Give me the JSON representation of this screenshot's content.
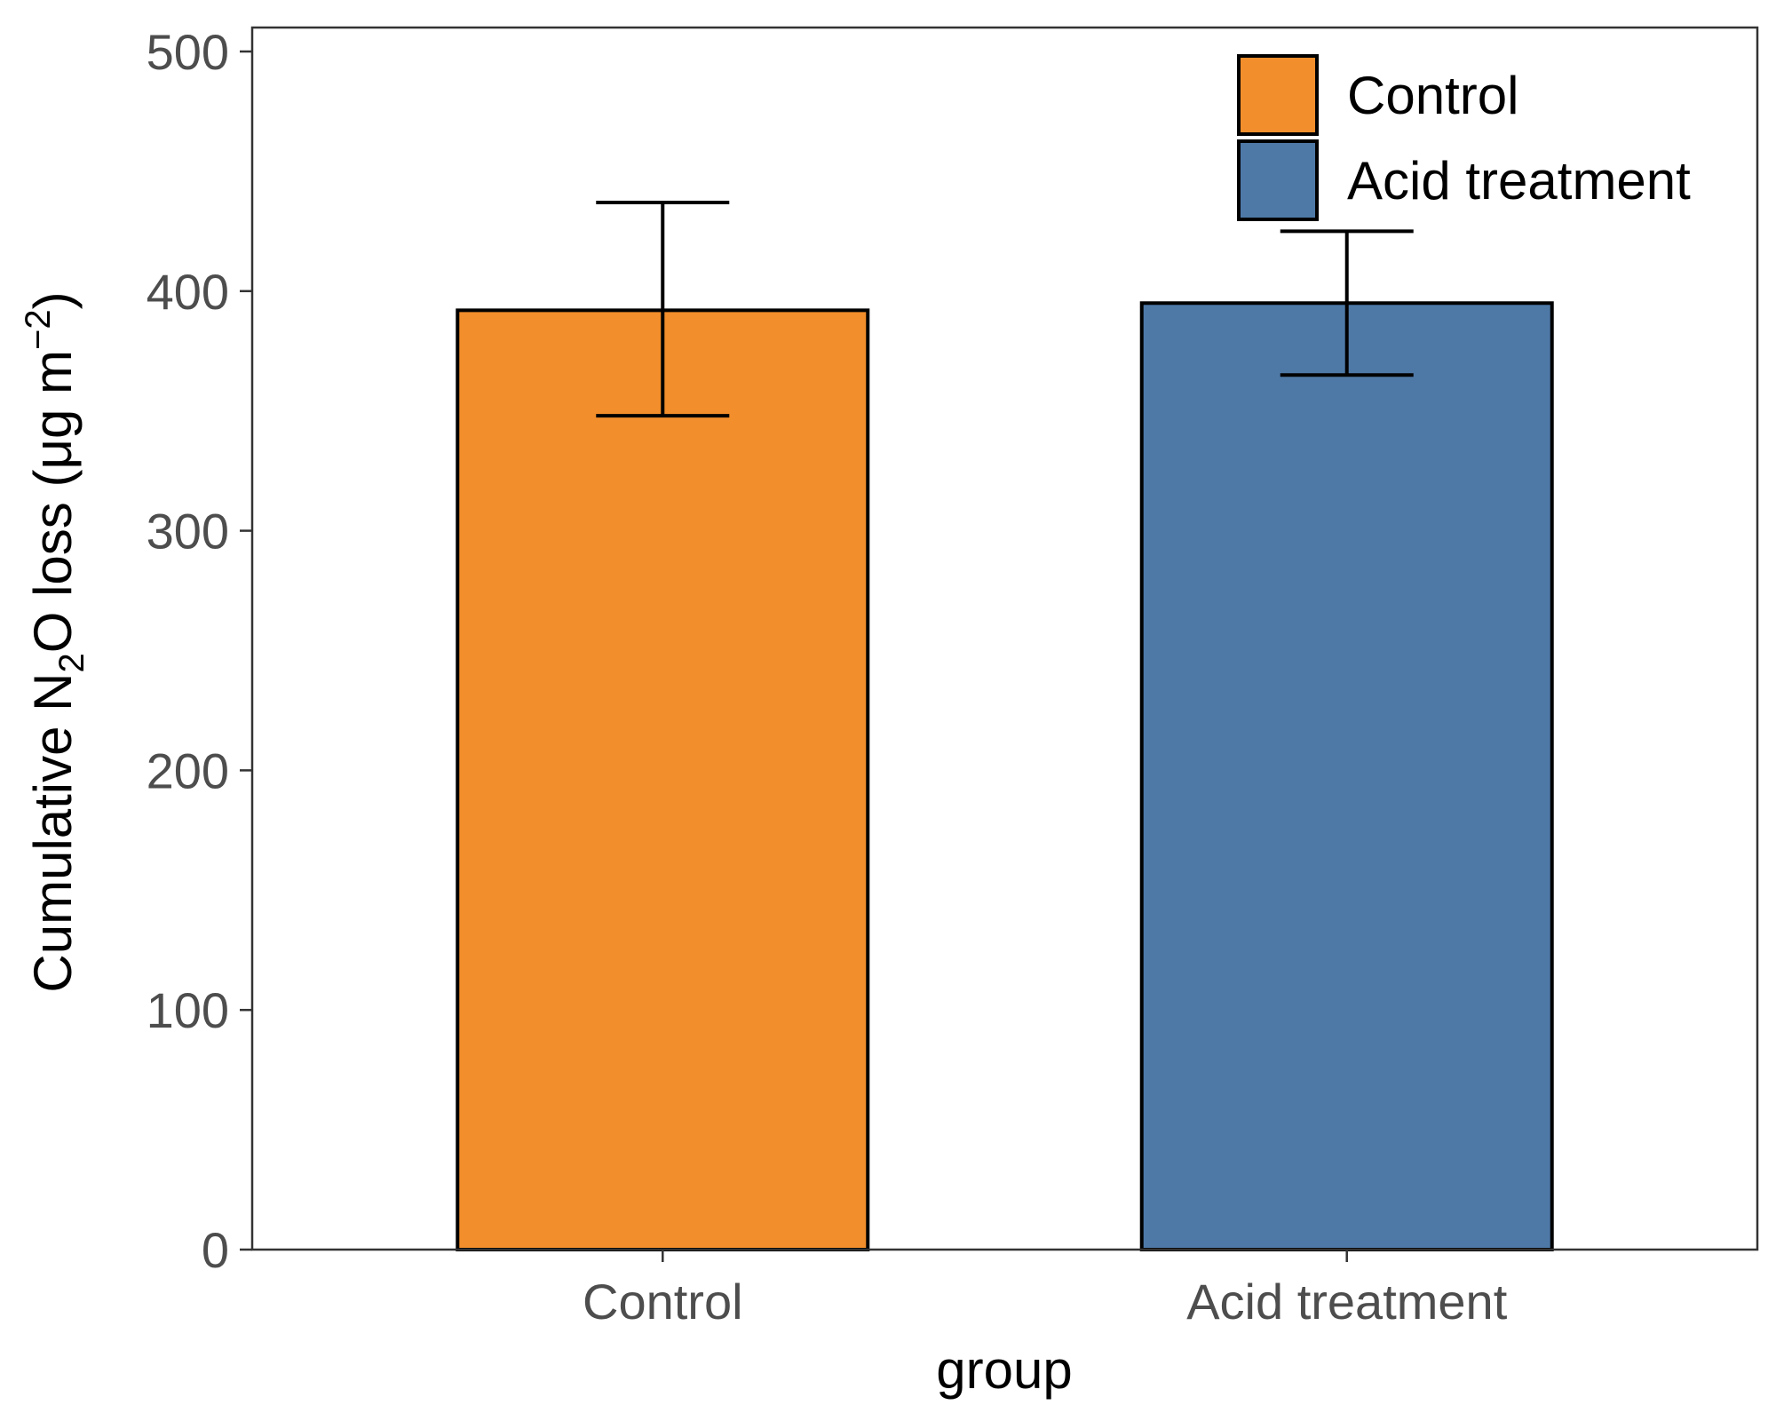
{
  "chart_data": {
    "type": "bar",
    "title": "",
    "xlabel": "group",
    "ylabel": {
      "pre": "Cumulative N",
      "sub": "2",
      "mid": "O loss (μg m",
      "sup": "−2",
      "post": ")"
    },
    "categories": [
      "Control",
      "Acid treatment"
    ],
    "values": [
      392,
      395
    ],
    "error_low": [
      348,
      365
    ],
    "error_high": [
      437,
      425
    ],
    "colors": [
      "#F28E2B",
      "#4E79A7"
    ],
    "ylim": [
      0,
      510
    ],
    "yticks": [
      0,
      100,
      200,
      300,
      400,
      500
    ],
    "grid": false,
    "legend": {
      "position": "top-right",
      "entries": [
        {
          "label": "Control",
          "color": "#F28E2B"
        },
        {
          "label": "Acid treatment",
          "color": "#4E79A7"
        }
      ]
    }
  }
}
